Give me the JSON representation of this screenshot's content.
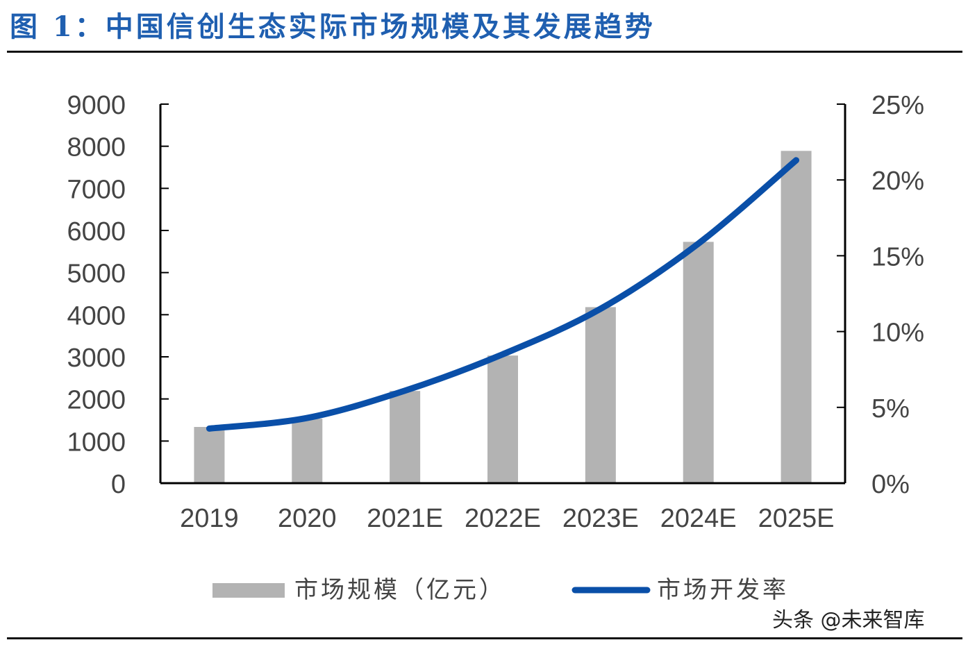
{
  "title": "图 1：中国信创生态实际市场规模及其发展趋势",
  "watermark": "头条 @未来智库",
  "chart_data": {
    "type": "bar+line",
    "categories": [
      "2019",
      "2020",
      "2021E",
      "2022E",
      "2023E",
      "2024E",
      "2025E"
    ],
    "series": [
      {
        "name": "市场规模（亿元）",
        "type": "bar",
        "axis": "left",
        "color": "#b3b3b3",
        "values": [
          1335,
          1530,
          2190,
          3030,
          4180,
          5730,
          7890
        ]
      },
      {
        "name": "市场开发率",
        "type": "line",
        "axis": "right",
        "color": "#0a4fa8",
        "values": [
          3.6,
          4.3,
          6.1,
          8.5,
          11.5,
          15.8,
          21.3
        ]
      }
    ],
    "yleft": {
      "ylim": [
        0,
        9000
      ],
      "ticks": [
        "0",
        "1000",
        "2000",
        "3000",
        "4000",
        "5000",
        "6000",
        "7000",
        "8000",
        "9000"
      ]
    },
    "yright": {
      "ylim": [
        0,
        25
      ],
      "ticks": [
        "0%",
        "5%",
        "10%",
        "15%",
        "20%",
        "25%"
      ]
    },
    "legend": "bottom",
    "grid": false
  }
}
